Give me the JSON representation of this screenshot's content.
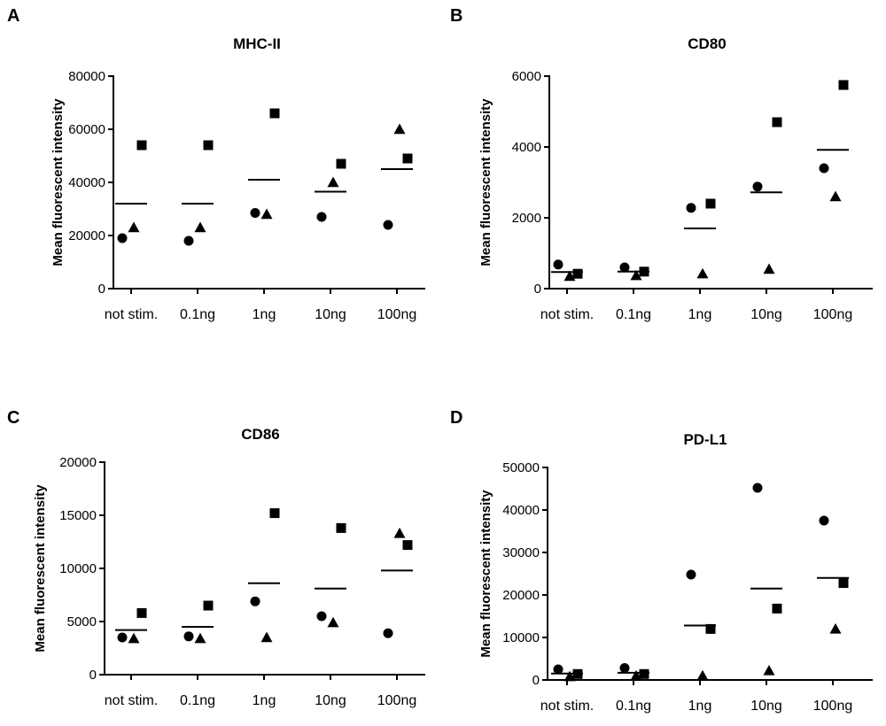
{
  "chart_data": [
    {
      "panel": "A",
      "type": "scatter",
      "title": "MHC-II",
      "ylabel": "Mean fluorescent intensity",
      "xlabel": "",
      "categories": [
        "not stim.",
        "0.1ng",
        "1ng",
        "10ng",
        "100ng"
      ],
      "ylim": [
        0,
        80000
      ],
      "yticks": [
        0,
        20000,
        40000,
        60000,
        80000
      ],
      "series": [
        {
          "name": "circle",
          "marker": "circle",
          "values": [
            19000,
            18000,
            28500,
            27000,
            24000
          ]
        },
        {
          "name": "square",
          "marker": "square",
          "values": [
            54000,
            54000,
            66000,
            47000,
            49000
          ]
        },
        {
          "name": "triangle",
          "marker": "triangle",
          "values": [
            23000,
            23000,
            28000,
            40000,
            60000
          ]
        }
      ],
      "means": [
        32000,
        32000,
        41000,
        36500,
        45000
      ]
    },
    {
      "panel": "B",
      "type": "scatter",
      "title": "CD80",
      "ylabel": "Mean fluorescent intensity",
      "xlabel": "",
      "categories": [
        "not stim.",
        "0.1ng",
        "1ng",
        "10ng",
        "100ng"
      ],
      "ylim": [
        0,
        6000
      ],
      "yticks": [
        0,
        2000,
        4000,
        6000
      ],
      "series": [
        {
          "name": "circle",
          "marker": "circle",
          "values": [
            680,
            600,
            2280,
            2880,
            3400
          ]
        },
        {
          "name": "square",
          "marker": "square",
          "values": [
            420,
            480,
            2400,
            4700,
            5750
          ]
        },
        {
          "name": "triangle",
          "marker": "triangle",
          "values": [
            350,
            370,
            420,
            550,
            2600
          ]
        }
      ],
      "means": [
        470,
        480,
        1700,
        2720,
        3920
      ]
    },
    {
      "panel": "C",
      "type": "scatter",
      "title": "CD86",
      "ylabel": "Mean fluorescent intensity",
      "xlabel": "",
      "categories": [
        "not stim.",
        "0.1ng",
        "1ng",
        "10ng",
        "100ng"
      ],
      "ylim": [
        0,
        20000
      ],
      "yticks": [
        0,
        5000,
        10000,
        15000,
        20000
      ],
      "series": [
        {
          "name": "circle",
          "marker": "circle",
          "values": [
            3500,
            3600,
            6900,
            5500,
            3900
          ]
        },
        {
          "name": "square",
          "marker": "square",
          "values": [
            5800,
            6500,
            15200,
            13800,
            12200
          ]
        },
        {
          "name": "triangle",
          "marker": "triangle",
          "values": [
            3400,
            3400,
            3500,
            4900,
            13300
          ]
        }
      ],
      "means": [
        4200,
        4500,
        8600,
        8100,
        9800
      ]
    },
    {
      "panel": "D",
      "type": "scatter",
      "title": "PD-L1",
      "ylabel": "Mean fluorescent intensity",
      "xlabel": "",
      "categories": [
        "not stim.",
        "0.1ng",
        "1ng",
        "10ng",
        "100ng"
      ],
      "ylim": [
        0,
        50000
      ],
      "yticks": [
        0,
        10000,
        20000,
        30000,
        40000,
        50000
      ],
      "series": [
        {
          "name": "circle",
          "marker": "circle",
          "values": [
            2500,
            2800,
            24800,
            45200,
            37500
          ]
        },
        {
          "name": "square",
          "marker": "square",
          "values": [
            1400,
            1400,
            12000,
            16800,
            22800
          ]
        },
        {
          "name": "triangle",
          "marker": "triangle",
          "values": [
            800,
            1000,
            1000,
            2200,
            12000
          ]
        }
      ],
      "means": [
        1500,
        1700,
        12800,
        21500,
        24000
      ]
    }
  ]
}
